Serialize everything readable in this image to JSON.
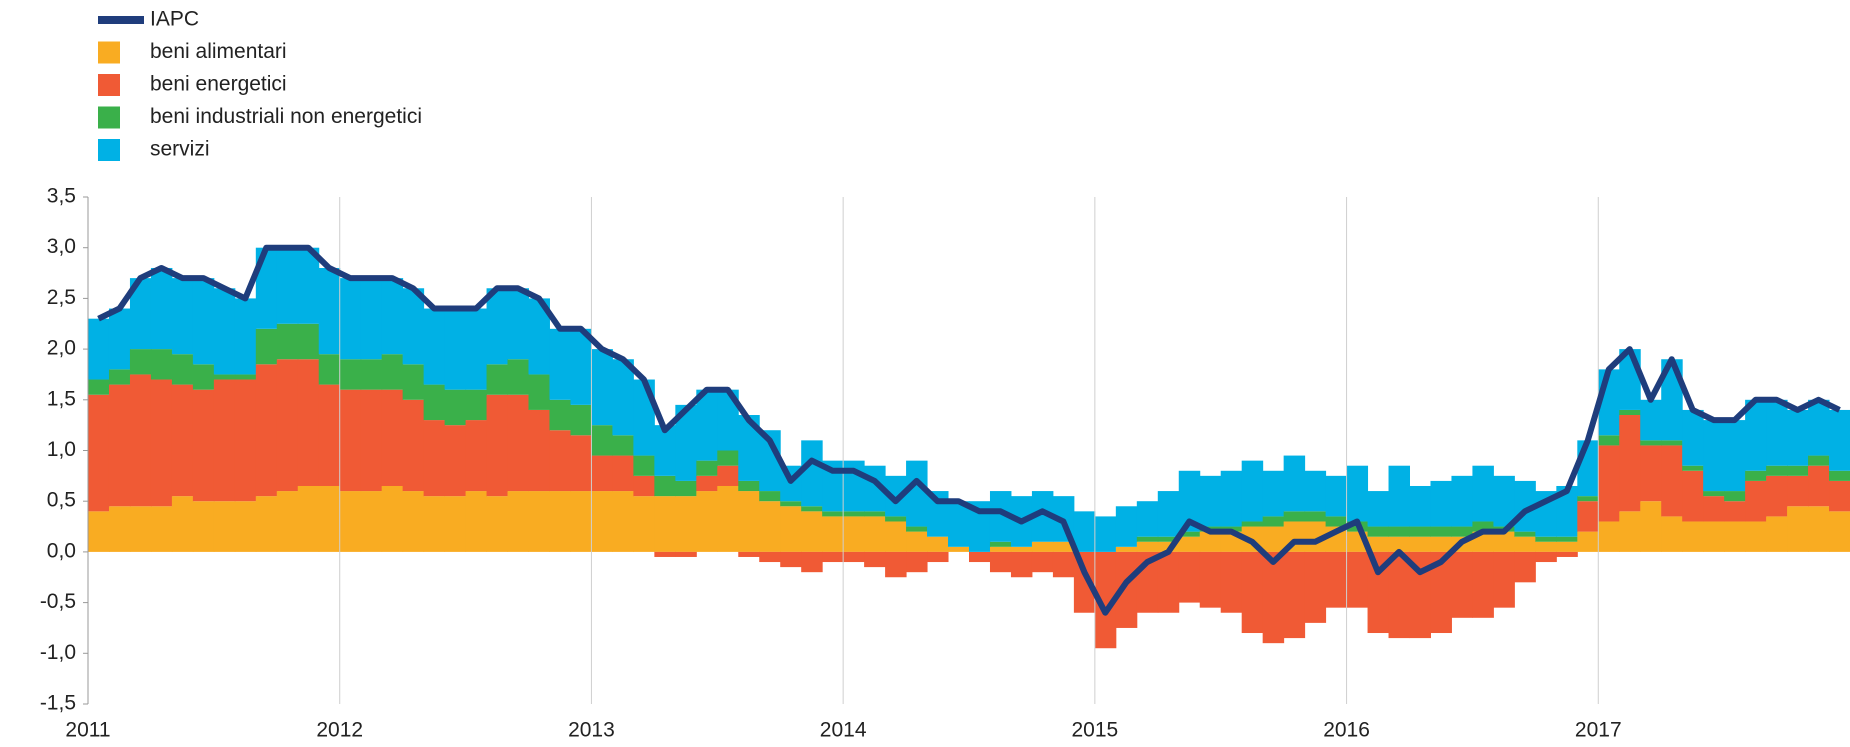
{
  "chart_data": {
    "type": "bar",
    "categories": [
      "2011",
      null,
      null,
      null,
      null,
      null,
      null,
      null,
      null,
      null,
      null,
      null,
      "2012",
      null,
      null,
      null,
      null,
      null,
      null,
      null,
      null,
      null,
      null,
      null,
      "2013",
      null,
      null,
      null,
      null,
      null,
      null,
      null,
      null,
      null,
      null,
      null,
      "2014",
      null,
      null,
      null,
      null,
      null,
      null,
      null,
      null,
      null,
      null,
      null,
      "2015",
      null,
      null,
      null,
      null,
      null,
      null,
      null,
      null,
      null,
      null,
      null,
      "2016",
      null,
      null,
      null,
      null,
      null,
      null,
      null,
      null,
      null,
      null,
      null,
      "2017",
      null,
      null,
      null,
      null,
      null,
      null,
      null,
      null,
      null,
      null,
      null
    ],
    "series": [
      {
        "name": "IAPC",
        "type": "line",
        "color": "#1f3d7c",
        "values": [
          2.3,
          2.4,
          2.7,
          2.8,
          2.7,
          2.7,
          2.6,
          2.5,
          3.0,
          3.0,
          3.0,
          2.8,
          2.7,
          2.7,
          2.7,
          2.6,
          2.4,
          2.4,
          2.4,
          2.6,
          2.6,
          2.5,
          2.2,
          2.2,
          2.0,
          1.9,
          1.7,
          1.2,
          1.4,
          1.6,
          1.6,
          1.3,
          1.1,
          0.7,
          0.9,
          0.8,
          0.8,
          0.7,
          0.5,
          0.7,
          0.5,
          0.5,
          0.4,
          0.4,
          0.3,
          0.4,
          0.3,
          -0.2,
          -0.6,
          -0.3,
          -0.1,
          0.0,
          0.3,
          0.2,
          0.2,
          0.1,
          -0.1,
          0.1,
          0.1,
          0.2,
          0.3,
          -0.2,
          0.0,
          -0.2,
          -0.1,
          0.1,
          0.2,
          0.2,
          0.4,
          0.5,
          0.6,
          1.1,
          1.8,
          2.0,
          1.5,
          1.9,
          1.4,
          1.3,
          1.3,
          1.5,
          1.5,
          1.4,
          1.5,
          1.4
        ]
      },
      {
        "name": "beni alimentari",
        "color": "#f9ac22",
        "values": [
          0.4,
          0.45,
          0.45,
          0.45,
          0.55,
          0.5,
          0.5,
          0.5,
          0.55,
          0.6,
          0.65,
          0.65,
          0.6,
          0.6,
          0.65,
          0.6,
          0.55,
          0.55,
          0.6,
          0.55,
          0.6,
          0.6,
          0.6,
          0.6,
          0.6,
          0.6,
          0.55,
          0.55,
          0.55,
          0.6,
          0.65,
          0.6,
          0.5,
          0.45,
          0.4,
          0.35,
          0.35,
          0.35,
          0.3,
          0.2,
          0.15,
          0.05,
          0.0,
          0.05,
          0.05,
          0.1,
          0.1,
          0.0,
          0.0,
          0.05,
          0.1,
          0.1,
          0.15,
          0.2,
          0.2,
          0.25,
          0.25,
          0.3,
          0.3,
          0.25,
          0.2,
          0.15,
          0.15,
          0.15,
          0.15,
          0.15,
          0.2,
          0.2,
          0.15,
          0.1,
          0.1,
          0.2,
          0.3,
          0.4,
          0.5,
          0.35,
          0.3,
          0.3,
          0.3,
          0.3,
          0.35,
          0.45,
          0.45,
          0.4
        ]
      },
      {
        "name": "beni energetici",
        "color": "#f05a35",
        "values": [
          1.15,
          1.2,
          1.3,
          1.25,
          1.1,
          1.1,
          1.2,
          1.2,
          1.3,
          1.3,
          1.25,
          1.0,
          1.0,
          1.0,
          0.95,
          0.9,
          0.75,
          0.7,
          0.7,
          1.0,
          0.95,
          0.8,
          0.6,
          0.55,
          0.35,
          0.35,
          0.2,
          -0.05,
          -0.05,
          0.15,
          0.2,
          -0.05,
          -0.1,
          -0.15,
          -0.2,
          -0.1,
          -0.1,
          -0.15,
          -0.25,
          -0.2,
          -0.1,
          0.0,
          -0.1,
          -0.2,
          -0.25,
          -0.2,
          -0.25,
          -0.6,
          -0.95,
          -0.75,
          -0.6,
          -0.6,
          -0.5,
          -0.55,
          -0.6,
          -0.8,
          -0.9,
          -0.85,
          -0.7,
          -0.55,
          -0.55,
          -0.8,
          -0.85,
          -0.85,
          -0.8,
          -0.65,
          -0.65,
          -0.55,
          -0.3,
          -0.1,
          -0.05,
          0.3,
          0.75,
          0.95,
          0.55,
          0.7,
          0.5,
          0.25,
          0.2,
          0.4,
          0.4,
          0.3,
          0.4,
          0.3
        ]
      },
      {
        "name": "beni industriali non energetici",
        "color": "#3ab04a",
        "values": [
          0.15,
          0.15,
          0.25,
          0.3,
          0.3,
          0.25,
          0.05,
          0.05,
          0.35,
          0.35,
          0.35,
          0.3,
          0.3,
          0.3,
          0.35,
          0.35,
          0.35,
          0.35,
          0.3,
          0.3,
          0.35,
          0.35,
          0.3,
          0.3,
          0.3,
          0.2,
          0.2,
          0.2,
          0.15,
          0.15,
          0.15,
          0.1,
          0.1,
          0.05,
          0.05,
          0.05,
          0.05,
          0.05,
          0.05,
          0.05,
          0.0,
          0.0,
          0.0,
          0.05,
          0.0,
          0.0,
          0.0,
          0.0,
          0.0,
          0.0,
          0.05,
          0.05,
          0.05,
          0.05,
          0.05,
          0.05,
          0.1,
          0.1,
          0.1,
          0.1,
          0.1,
          0.1,
          0.1,
          0.1,
          0.1,
          0.1,
          0.1,
          0.05,
          0.05,
          0.05,
          0.05,
          0.05,
          0.1,
          0.05,
          0.05,
          0.05,
          0.05,
          0.05,
          0.1,
          0.1,
          0.1,
          0.1,
          0.1,
          0.1
        ]
      },
      {
        "name": "servizi",
        "color": "#00b1e5",
        "values": [
          0.6,
          0.6,
          0.7,
          0.8,
          0.75,
          0.85,
          0.85,
          0.75,
          0.8,
          0.75,
          0.75,
          0.85,
          0.8,
          0.8,
          0.75,
          0.75,
          0.75,
          0.8,
          0.8,
          0.75,
          0.7,
          0.75,
          0.7,
          0.75,
          0.75,
          0.75,
          0.75,
          0.5,
          0.75,
          0.7,
          0.6,
          0.65,
          0.6,
          0.35,
          0.65,
          0.5,
          0.5,
          0.45,
          0.4,
          0.65,
          0.45,
          0.45,
          0.5,
          0.5,
          0.5,
          0.5,
          0.45,
          0.4,
          0.35,
          0.4,
          0.35,
          0.45,
          0.6,
          0.5,
          0.55,
          0.6,
          0.45,
          0.55,
          0.4,
          0.4,
          0.55,
          0.35,
          0.6,
          0.4,
          0.45,
          0.5,
          0.55,
          0.5,
          0.5,
          0.45,
          0.5,
          0.55,
          0.65,
          0.6,
          0.4,
          0.8,
          0.55,
          0.7,
          0.7,
          0.7,
          0.65,
          0.55,
          0.55,
          0.6
        ]
      }
    ],
    "ylim": [
      -1.5,
      3.5
    ],
    "yticks": [
      {
        "value": -1.5,
        "label": "-1,5"
      },
      {
        "value": -1,
        "label": "-1,0"
      },
      {
        "value": -0.5,
        "label": "-0,5"
      },
      {
        "value": 0,
        "label": "0,0"
      },
      {
        "value": 0.5,
        "label": "0,5"
      },
      {
        "value": 1,
        "label": "1,0"
      },
      {
        "value": 1.5,
        "label": "1,5"
      },
      {
        "value": 2,
        "label": "2,0"
      },
      {
        "value": 2.5,
        "label": "2,5"
      },
      {
        "value": 3,
        "label": "3,0"
      },
      {
        "value": 3.5,
        "label": "3,5"
      }
    ],
    "xgrid": true
  }
}
